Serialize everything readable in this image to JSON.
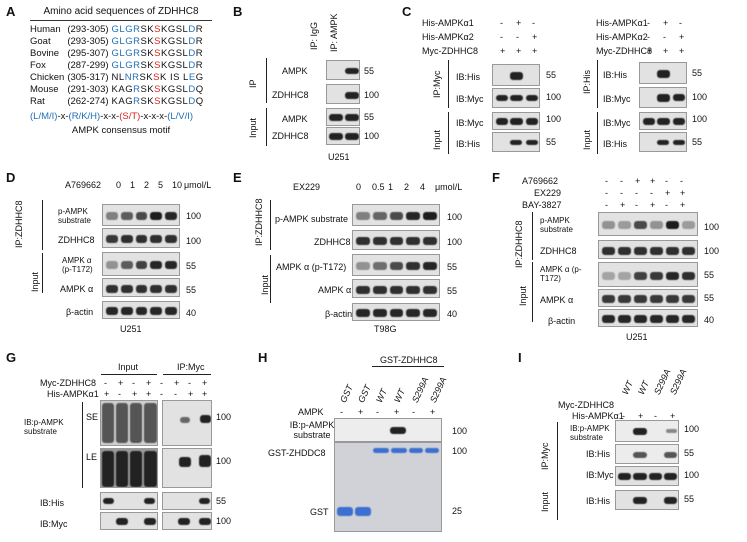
{
  "panels": {
    "A": {
      "letter": "A",
      "title": "Amino acid sequences of ZDHHC8",
      "rows": [
        {
          "species": "Human",
          "range": "(293-305)",
          "seq": [
            [
              "GLG",
              "b"
            ],
            [
              "R",
              "b2"
            ],
            [
              "SK",
              "k"
            ],
            [
              "S",
              "r"
            ],
            [
              "KGSL",
              "k"
            ],
            [
              "D",
              "b"
            ],
            [
              "R",
              "k"
            ]
          ]
        },
        {
          "species": "Goat",
          "range": "(293-305)",
          "seq": [
            [
              "GLG",
              "b"
            ],
            [
              "R",
              "b2"
            ],
            [
              "SK",
              "k"
            ],
            [
              "S",
              "r"
            ],
            [
              "KGSL",
              "k"
            ],
            [
              "D",
              "b"
            ],
            [
              "R",
              "k"
            ]
          ]
        },
        {
          "species": "Bovine",
          "range": "(295-307)",
          "seq": [
            [
              "GLG",
              "b"
            ],
            [
              "R",
              "b2"
            ],
            [
              "SK",
              "k"
            ],
            [
              "S",
              "r"
            ],
            [
              "KGSL",
              "k"
            ],
            [
              "D",
              "b"
            ],
            [
              "R",
              "k"
            ]
          ]
        },
        {
          "species": "Fox",
          "range": "(287-299)",
          "seq": [
            [
              "GLG",
              "b"
            ],
            [
              "R",
              "b2"
            ],
            [
              "SK",
              "k"
            ],
            [
              "S",
              "r"
            ],
            [
              "KGSL",
              "k"
            ],
            [
              "D",
              "b"
            ],
            [
              "R",
              "k"
            ]
          ]
        },
        {
          "species": "Chicken",
          "range": "(305-317)",
          "seq": [
            [
              "NL",
              "k"
            ],
            [
              "N",
              "b"
            ],
            [
              "R",
              "b2"
            ],
            [
              "SK",
              "k"
            ],
            [
              "S",
              "r"
            ],
            [
              "K IS L",
              "k"
            ],
            [
              "E",
              "b"
            ],
            [
              "G",
              "k"
            ]
          ]
        },
        {
          "species": "Mouse",
          "range": "(291-303)",
          "seq": [
            [
              "KAG",
              "k"
            ],
            [
              "R",
              "b2"
            ],
            [
              "SK",
              "k"
            ],
            [
              "S",
              "r"
            ],
            [
              "KGSL",
              "k"
            ],
            [
              "D",
              "b"
            ],
            [
              "Q",
              "k"
            ]
          ]
        },
        {
          "species": "Rat",
          "range": "(262-274)",
          "seq": [
            [
              "KAG",
              "k"
            ],
            [
              "R",
              "b2"
            ],
            [
              "SK",
              "k"
            ],
            [
              "S",
              "r"
            ],
            [
              "KGSL",
              "k"
            ],
            [
              "D",
              "b"
            ],
            [
              "Q",
              "k"
            ]
          ]
        }
      ],
      "motif": "(L/M/I)-x-(R/K/H)-x-x-(S/T)-x-x-x-(L/V/I)",
      "motif_caption": "AMPK consensus motif"
    },
    "B": {
      "letter": "B",
      "lane1": "IP: IgG",
      "lane2": "IP: AMPK",
      "rows": [
        "AMPK",
        "ZDHHC8",
        "AMPK",
        "ZDHHC8"
      ],
      "mw": [
        "55",
        "100",
        "55",
        "100"
      ],
      "groups": [
        "IP",
        "Input"
      ],
      "cell": "U251"
    },
    "C": {
      "letter": "C",
      "left": {
        "conds": [
          "His-AMPKα1",
          "His-AMPKα2",
          "Myc-ZDHHC8"
        ],
        "signs": [
          [
            "-",
            "+",
            "-"
          ],
          [
            "-",
            "-",
            "+"
          ],
          [
            "+",
            "+",
            "+"
          ]
        ],
        "rows": [
          "IB:His",
          "IB:Myc",
          "IB:Myc",
          "IB:His"
        ],
        "mw": [
          "55",
          "100",
          "100",
          "55"
        ],
        "groups": [
          "IP:Myc",
          "Input"
        ]
      },
      "right": {
        "conds": [
          "His-AMPKα1",
          "His-AMPKα2",
          "Myc-ZDHHC8"
        ],
        "signs": [
          [
            "-",
            "+",
            "-"
          ],
          [
            "-",
            "-",
            "+"
          ],
          [
            "+",
            "+",
            "+"
          ]
        ],
        "rows": [
          "IB:His",
          "IB:Myc",
          "IB:Myc",
          "IB:His"
        ],
        "mw": [
          "55",
          "100",
          "100",
          "55"
        ],
        "groups": [
          "IP:His",
          "Input"
        ]
      }
    },
    "D": {
      "letter": "D",
      "drug": "A769662",
      "doses": [
        "0",
        "1",
        "2",
        "5",
        "10"
      ],
      "unit": "μmol/L",
      "rows": [
        "p-AMPK substrate",
        "ZDHHC8",
        "AMPK α (p-T172)",
        "AMPK α",
        "β-actin"
      ],
      "mw": [
        "100",
        "100",
        "55",
        "55",
        "40"
      ],
      "groups": [
        "IP:ZDHHC8",
        "Input"
      ],
      "cell": "U251"
    },
    "E": {
      "letter": "E",
      "drug": "EX229",
      "doses": [
        "0",
        "0.5",
        "1",
        "2",
        "4"
      ],
      "unit": "μmol/L",
      "rows": [
        "p-AMPK substrate",
        "ZDHHC8",
        "AMPK α (p-T172)",
        "AMPK α",
        "β-actin"
      ],
      "mw": [
        "100",
        "100",
        "55",
        "55",
        "40"
      ],
      "groups": [
        "IP:ZDHHC8",
        "Input"
      ],
      "cell": "T98G"
    },
    "F": {
      "letter": "F",
      "conds": [
        "A769662",
        "EX229",
        "BAY-3827"
      ],
      "signs": [
        [
          "-",
          "-",
          "+",
          "+",
          "-",
          "-"
        ],
        [
          "-",
          "-",
          "-",
          "-",
          "+",
          "+"
        ],
        [
          "-",
          "+",
          "-",
          "+",
          "-",
          "+"
        ]
      ],
      "rows": [
        "p-AMPK substrate",
        "ZDHHC8",
        "AMPK α (p-T172)",
        "AMPK α",
        "β-actin"
      ],
      "mw": [
        "100",
        "100",
        "55",
        "55",
        "40"
      ],
      "groups": [
        "IP:ZDHHC8",
        "Input"
      ],
      "cell": "U251"
    },
    "G": {
      "letter": "G",
      "headers": [
        "Input",
        "IP:Myc"
      ],
      "conds": [
        "Myc-ZDHHC8",
        "His-AMPKα1"
      ],
      "signs": [
        [
          "-",
          "+",
          "-",
          "+",
          "-",
          "+",
          "-",
          "+"
        ],
        [
          "+",
          "-",
          "+",
          "+",
          "-",
          "-",
          "+",
          "+"
        ]
      ],
      "rows": [
        "IB:p-AMPK substrate",
        "IB:His",
        "IB:Myc"
      ],
      "sub": [
        "SE",
        "LE"
      ],
      "mw": [
        "100",
        "100",
        "55",
        "100"
      ]
    },
    "H": {
      "letter": "H",
      "header": "GST-ZDHHC8",
      "lanes": [
        "GST",
        "GST",
        "WT",
        "WT",
        "S299A",
        "S299A"
      ],
      "ampk_label": "AMPK",
      "ampk": [
        "-",
        "+",
        "-",
        "+",
        "-",
        "+"
      ],
      "rows": [
        "IB:p-AMPK substrate",
        "GST-ZHDDC8",
        "GST"
      ],
      "mw": [
        "100",
        "100",
        "25"
      ]
    },
    "I": {
      "letter": "I",
      "lanes": [
        "WT",
        "WT",
        "S299A",
        "S299A"
      ],
      "conds": [
        "Myc-ZDHHC8",
        "His-AMPKα1"
      ],
      "signs": [
        [
          "-",
          "+",
          "-",
          "+"
        ]
      ],
      "rows": [
        "IB:p-AMPK substrate",
        "IB:His",
        "IB:Myc",
        "IB:His"
      ],
      "mw": [
        "100",
        "55",
        "100",
        "55"
      ],
      "groups": [
        "IP:Myc",
        "Input"
      ]
    }
  },
  "colors": {
    "blue": "#1f6fb5",
    "red": "#d6261f",
    "coomassie": "#3b6fd0"
  }
}
